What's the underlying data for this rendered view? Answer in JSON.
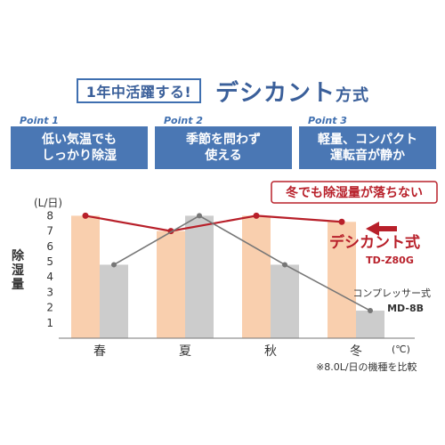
{
  "header": {
    "badge": "1年中活躍する!",
    "title": "デシカント",
    "title_suffix": "方式"
  },
  "points": [
    {
      "label": "Point 1",
      "line1": "低い気温でも",
      "line2": "しっかり除湿"
    },
    {
      "label": "Point 2",
      "line1": "季節を問わず",
      "line2": "使える"
    },
    {
      "label": "Point 3",
      "line1": "軽量、コンパクト",
      "line2": "運転音が静か"
    }
  ],
  "chart_data": {
    "type": "bar",
    "categories": [
      "春",
      "夏",
      "秋",
      "冬"
    ],
    "ylabel": "除湿量",
    "yunit": "(L/日)",
    "xunit": "(℃)",
    "ylim": [
      0,
      8
    ],
    "yticks": [
      1,
      2,
      3,
      4,
      5,
      6,
      7,
      8
    ],
    "grid": false,
    "series": [
      {
        "name": "デシカント式",
        "model": "TD-Z80G",
        "color": "#f9cfae",
        "line_color": "#b8202a",
        "values": [
          8,
          7,
          8,
          7.6
        ]
      },
      {
        "name": "コンプレッサー式",
        "model": "MD-8B",
        "color": "#cccccc",
        "line_color": "#777777",
        "values": [
          4.8,
          8,
          4.8,
          1.8
        ]
      }
    ],
    "callout": "冬でも除湿量が落ちない",
    "note": "※8.0L/日の機種を比較"
  }
}
